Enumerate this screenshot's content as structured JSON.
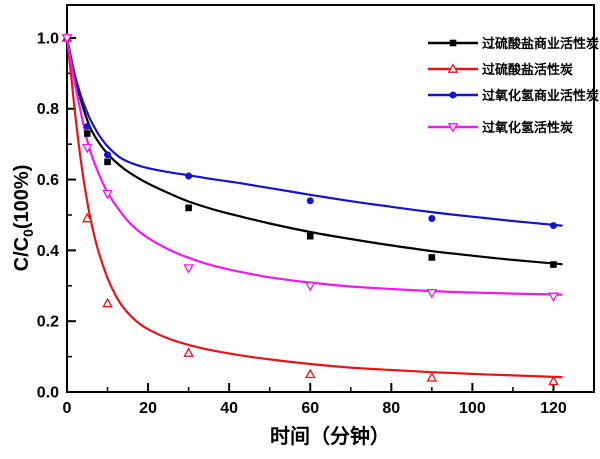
{
  "figure": {
    "background": "#ffffff",
    "frame_color": "#000000"
  },
  "chart_data": {
    "type": "line",
    "title": "",
    "xlabel": "时间（分钟）",
    "ylabel": "C/C0(100%)",
    "ylabel_parts": {
      "base": "C/C",
      "sub": "0",
      "rest": "(100%)"
    },
    "xlim": [
      0,
      130
    ],
    "ylim": [
      0,
      1.093
    ],
    "x_major_ticks": [
      0,
      20,
      40,
      60,
      80,
      100,
      120
    ],
    "x_minor_ticks": [
      10,
      30,
      50,
      70,
      90,
      110
    ],
    "y_major_ticks": [
      0.0,
      0.2,
      0.4,
      0.6,
      0.8,
      1.0
    ],
    "y_minor_ticks": [
      0.1,
      0.3,
      0.5,
      0.7,
      0.9
    ],
    "grid": false,
    "legend_position": "top-right",
    "x": [
      0,
      5,
      10,
      30,
      60,
      90,
      120
    ],
    "series": [
      {
        "name": "过硫酸盐商业活性炭",
        "color": "#000000",
        "marker": "square-filled",
        "values": [
          1.0,
          0.73,
          0.65,
          0.52,
          0.44,
          0.38,
          0.36
        ],
        "curve": [
          [
            0,
            1.0
          ],
          [
            1,
            0.942
          ],
          [
            2,
            0.888
          ],
          [
            3,
            0.842
          ],
          [
            4,
            0.802
          ],
          [
            5,
            0.768
          ],
          [
            6,
            0.74
          ],
          [
            8,
            0.702
          ],
          [
            10,
            0.673
          ],
          [
            13,
            0.64
          ],
          [
            16,
            0.615
          ],
          [
            20,
            0.589
          ],
          [
            25,
            0.562
          ],
          [
            30,
            0.538
          ],
          [
            36,
            0.516
          ],
          [
            42,
            0.498
          ],
          [
            50,
            0.476
          ],
          [
            60,
            0.452
          ],
          [
            70,
            0.432
          ],
          [
            80,
            0.414
          ],
          [
            90,
            0.398
          ],
          [
            100,
            0.385
          ],
          [
            110,
            0.373
          ],
          [
            122,
            0.361
          ]
        ]
      },
      {
        "name": "过硫酸盐活性炭",
        "color": "#e81217",
        "marker": "triangle-up-open",
        "values": [
          1.0,
          0.49,
          0.25,
          0.11,
          0.05,
          0.04,
          0.03
        ],
        "curve": [
          [
            0,
            1.0
          ],
          [
            1,
            0.895
          ],
          [
            2,
            0.786
          ],
          [
            3,
            0.69
          ],
          [
            4,
            0.607
          ],
          [
            5,
            0.537
          ],
          [
            6,
            0.478
          ],
          [
            7,
            0.429
          ],
          [
            8,
            0.388
          ],
          [
            10,
            0.322
          ],
          [
            12,
            0.273
          ],
          [
            14,
            0.237
          ],
          [
            17,
            0.201
          ],
          [
            20,
            0.177
          ],
          [
            25,
            0.151
          ],
          [
            30,
            0.133
          ],
          [
            36,
            0.117
          ],
          [
            42,
            0.105
          ],
          [
            50,
            0.092
          ],
          [
            60,
            0.079
          ],
          [
            70,
            0.069
          ],
          [
            80,
            0.062
          ],
          [
            90,
            0.056
          ],
          [
            100,
            0.051
          ],
          [
            110,
            0.047
          ],
          [
            122,
            0.042
          ]
        ]
      },
      {
        "name": "过氧化氢商业活性炭",
        "color": "#1414cc",
        "marker": "circle-filled",
        "values": [
          1.0,
          0.75,
          0.67,
          0.61,
          0.54,
          0.49,
          0.47
        ],
        "curve": [
          [
            0,
            1.0
          ],
          [
            1,
            0.943
          ],
          [
            2,
            0.893
          ],
          [
            3,
            0.852
          ],
          [
            4,
            0.818
          ],
          [
            5,
            0.789
          ],
          [
            6,
            0.764
          ],
          [
            8,
            0.724
          ],
          [
            10,
            0.694
          ],
          [
            13,
            0.663
          ],
          [
            16,
            0.646
          ],
          [
            20,
            0.632
          ],
          [
            25,
            0.621
          ],
          [
            30,
            0.612
          ],
          [
            36,
            0.601
          ],
          [
            42,
            0.591
          ],
          [
            50,
            0.576
          ],
          [
            60,
            0.557
          ],
          [
            70,
            0.539
          ],
          [
            80,
            0.523
          ],
          [
            90,
            0.508
          ],
          [
            100,
            0.495
          ],
          [
            110,
            0.483
          ],
          [
            122,
            0.47
          ]
        ]
      },
      {
        "name": "过氧化氢活性炭",
        "color": "#f316f3",
        "marker": "triangle-down-open",
        "values": [
          1.0,
          0.69,
          0.56,
          0.35,
          0.3,
          0.28,
          0.27
        ],
        "curve": [
          [
            0,
            1.0
          ],
          [
            1,
            0.93
          ],
          [
            2,
            0.868
          ],
          [
            3,
            0.812
          ],
          [
            4,
            0.758
          ],
          [
            5,
            0.71
          ],
          [
            6,
            0.671
          ],
          [
            8,
            0.612
          ],
          [
            10,
            0.564
          ],
          [
            13,
            0.512
          ],
          [
            16,
            0.471
          ],
          [
            20,
            0.435
          ],
          [
            25,
            0.403
          ],
          [
            30,
            0.379
          ],
          [
            36,
            0.357
          ],
          [
            42,
            0.341
          ],
          [
            50,
            0.324
          ],
          [
            60,
            0.309
          ],
          [
            70,
            0.298
          ],
          [
            80,
            0.291
          ],
          [
            90,
            0.285
          ],
          [
            100,
            0.281
          ],
          [
            110,
            0.278
          ],
          [
            122,
            0.275
          ]
        ]
      }
    ]
  }
}
